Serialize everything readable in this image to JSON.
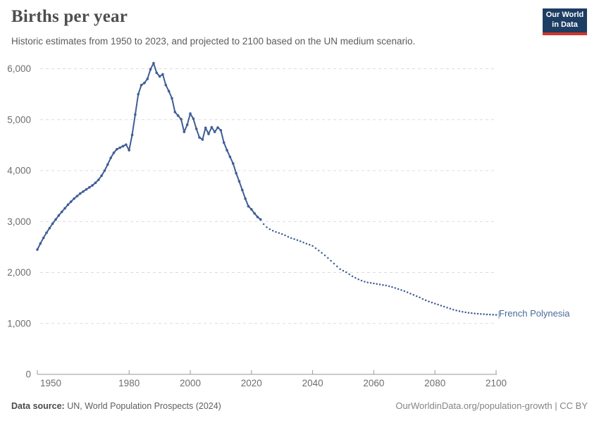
{
  "header": {
    "title": "Births per year",
    "subtitle": "Historic estimates from 1950 to 2023, and projected to 2100 based on the UN medium scenario.",
    "logo": {
      "line1": "Our World",
      "line2": "in Data",
      "bg_color": "#1d3d63",
      "bar_color": "#d0352b"
    }
  },
  "footer": {
    "datasource_label": "Data source:",
    "datasource_value": "UN, World Population Prospects (2024)",
    "credit": "OurWorldinData.org/population-growth | CC BY"
  },
  "chart_data": {
    "type": "line",
    "title": "Births per year",
    "entity_label": "French Polynesia",
    "line_color": "#3f5e96",
    "entity_label_color": "#4c6a9c",
    "grid": true,
    "legend_position": "end-of-line",
    "xlim": [
      1950,
      2100
    ],
    "ylim": [
      0,
      6000
    ],
    "yticks": [
      0,
      1000,
      2000,
      3000,
      4000,
      5000,
      6000
    ],
    "xticks": [
      1950,
      1980,
      2000,
      2020,
      2040,
      2060,
      2080,
      2100
    ],
    "series": [
      {
        "name": "historic estimates",
        "style": "solid_with_markers",
        "start_year": 1950,
        "end_year": 2023,
        "values": [
          2450,
          2570,
          2680,
          2780,
          2870,
          2960,
          3040,
          3120,
          3190,
          3260,
          3330,
          3390,
          3450,
          3500,
          3550,
          3590,
          3630,
          3670,
          3710,
          3760,
          3820,
          3900,
          4000,
          4120,
          4250,
          4350,
          4420,
          4450,
          4480,
          4510,
          4400,
          4700,
          5100,
          5500,
          5680,
          5720,
          5800,
          5990,
          6110,
          5920,
          5850,
          5890,
          5680,
          5560,
          5420,
          5150,
          5080,
          5010,
          4760,
          4900,
          5120,
          5020,
          4820,
          4650,
          4610,
          4840,
          4720,
          4850,
          4760,
          4845,
          4790,
          4550,
          4400,
          4270,
          4140,
          3950,
          3790,
          3620,
          3450,
          3300,
          3240,
          3160,
          3090,
          3040
        ]
      },
      {
        "name": "UN medium scenario projection",
        "style": "dotted",
        "start_year": 2023,
        "end_year": 2100,
        "values": [
          3040,
          2950,
          2890,
          2850,
          2820,
          2795,
          2775,
          2755,
          2730,
          2700,
          2675,
          2655,
          2635,
          2615,
          2590,
          2565,
          2545,
          2520,
          2475,
          2430,
          2385,
          2335,
          2285,
          2230,
          2175,
          2120,
          2065,
          2035,
          2005,
          1965,
          1925,
          1895,
          1865,
          1840,
          1820,
          1805,
          1795,
          1785,
          1775,
          1765,
          1755,
          1745,
          1730,
          1715,
          1695,
          1675,
          1655,
          1635,
          1610,
          1585,
          1560,
          1535,
          1510,
          1480,
          1455,
          1430,
          1410,
          1390,
          1370,
          1350,
          1330,
          1310,
          1290,
          1270,
          1255,
          1240,
          1228,
          1218,
          1210,
          1202,
          1196,
          1190,
          1185,
          1181,
          1177,
          1174,
          1171,
          1168
        ]
      }
    ]
  }
}
